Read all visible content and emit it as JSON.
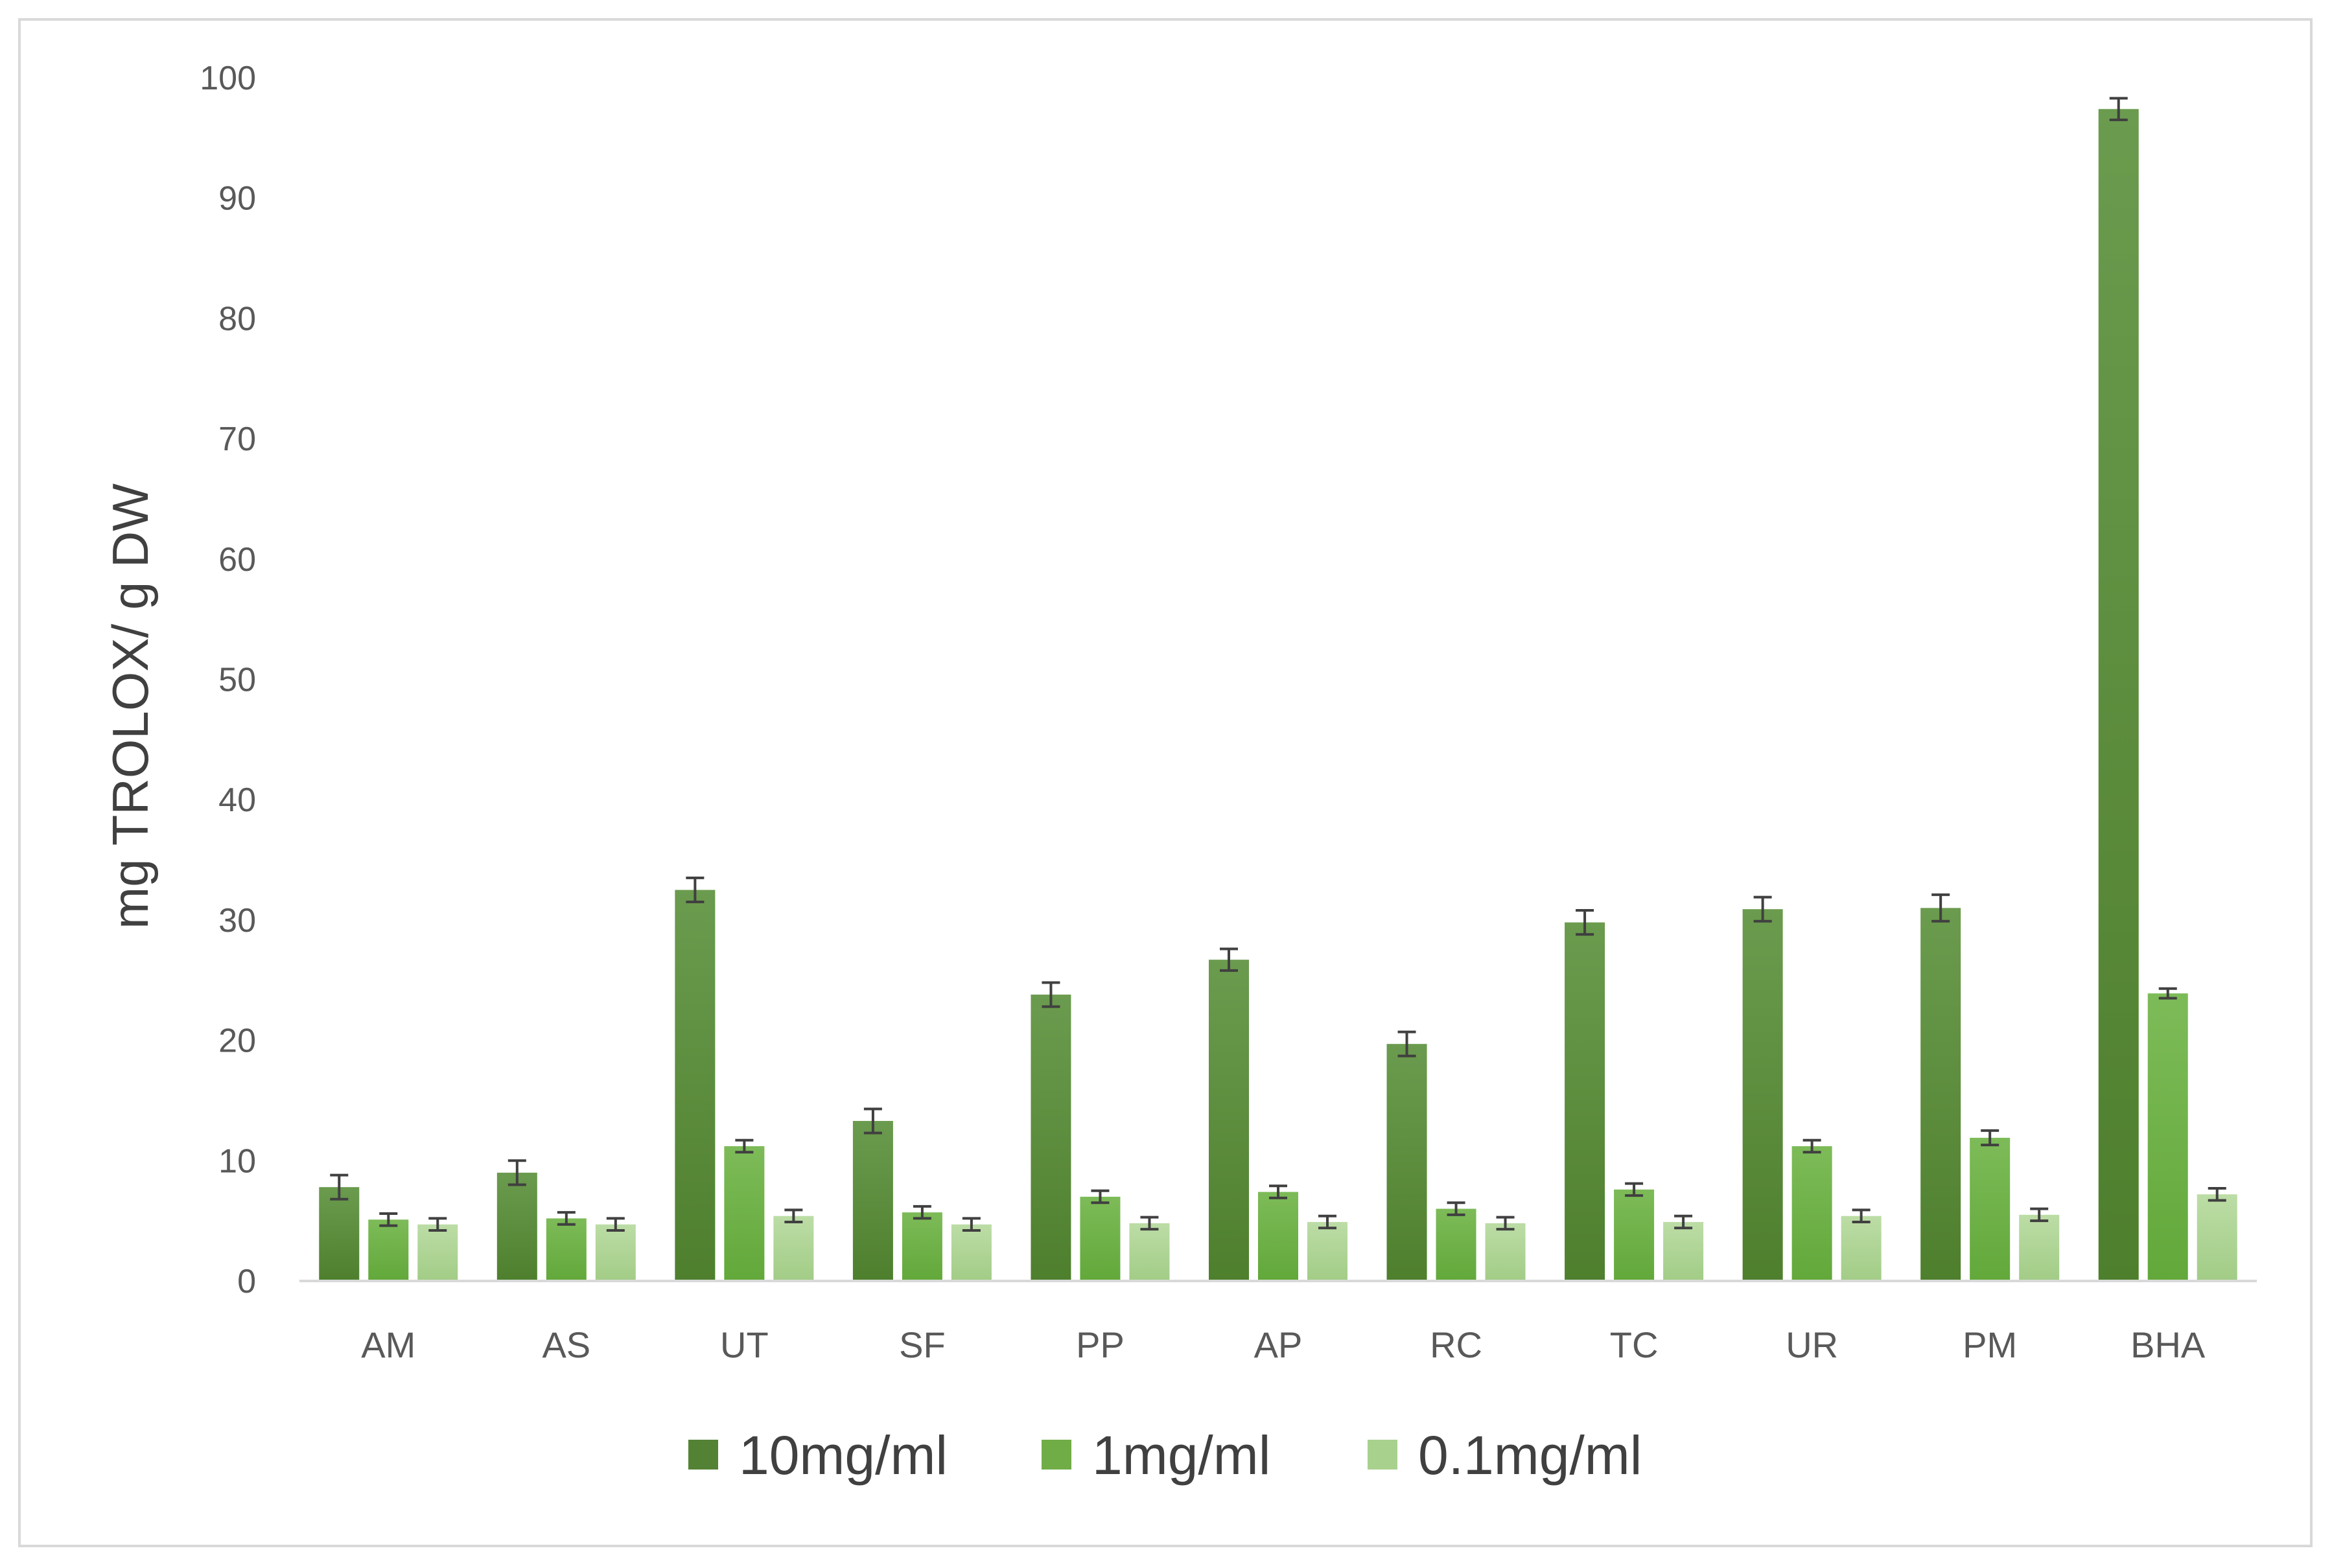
{
  "chart_data": {
    "type": "bar",
    "ylabel": "mg TROLOX/ g DW",
    "xlabel": "",
    "ylim": [
      0,
      100
    ],
    "yticks": [
      0,
      10,
      20,
      30,
      40,
      50,
      60,
      70,
      80,
      90,
      100
    ],
    "grid": false,
    "legend_position": "bottom",
    "error_bars": true,
    "categories": [
      "AM",
      "AS",
      "UT",
      "SF",
      "PP",
      "AP",
      "RC",
      "TC",
      "UR",
      "PM",
      "BHA"
    ],
    "series": [
      {
        "name": "10mg/ml",
        "color": "#548235",
        "values": [
          7.8,
          9.0,
          32.5,
          13.3,
          23.8,
          26.7,
          19.7,
          29.8,
          30.9,
          31.0,
          97.4
        ],
        "errors": [
          1.0,
          1.0,
          1.0,
          1.0,
          1.0,
          0.9,
          1.0,
          1.0,
          1.0,
          1.1,
          0.9
        ]
      },
      {
        "name": "1mg/ml",
        "color": "#70ad47",
        "values": [
          5.1,
          5.2,
          11.2,
          5.7,
          7.0,
          7.4,
          6.0,
          7.6,
          11.2,
          11.9,
          23.9
        ],
        "errors": [
          0.5,
          0.5,
          0.5,
          0.5,
          0.5,
          0.5,
          0.5,
          0.5,
          0.5,
          0.6,
          0.4
        ]
      },
      {
        "name": "0.1mg/ml",
        "color": "#a9d18e",
        "values": [
          4.7,
          4.7,
          5.4,
          4.7,
          4.8,
          4.9,
          4.8,
          4.9,
          5.4,
          5.5,
          7.2
        ],
        "errors": [
          0.5,
          0.5,
          0.5,
          0.5,
          0.5,
          0.5,
          0.5,
          0.5,
          0.5,
          0.5,
          0.5
        ]
      }
    ]
  }
}
